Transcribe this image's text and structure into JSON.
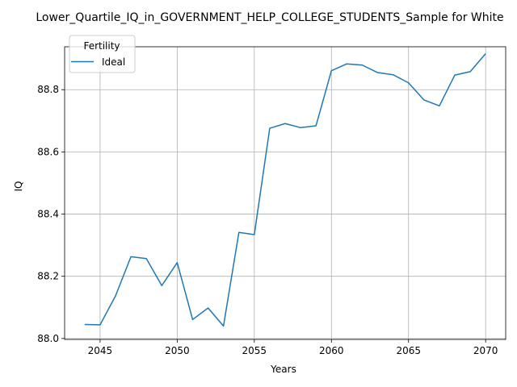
{
  "chart_data": {
    "type": "line",
    "title": "Lower_Quartile_IQ_in_GOVERNMENT_HELP_COLLEGE_STUDENTS_Sample for White",
    "xlabel": "Years",
    "ylabel": "IQ",
    "xlim": [
      2042.7,
      2071.3
    ],
    "ylim": [
      87.997,
      88.938
    ],
    "xticks": [
      2045,
      2050,
      2055,
      2060,
      2065,
      2070
    ],
    "yticks": [
      88.0,
      88.2,
      88.4,
      88.6,
      88.8
    ],
    "xtick_labels": [
      "2045",
      "2050",
      "2055",
      "2060",
      "2065",
      "2070"
    ],
    "ytick_labels": [
      "88.0",
      "88.2",
      "88.4",
      "88.6",
      "88.8"
    ],
    "grid": true,
    "legend": {
      "title": "Fertility",
      "position": "upper-left"
    },
    "series": [
      {
        "name": "Ideal",
        "color": "#1f77b4",
        "x": [
          2044,
          2045,
          2046,
          2047,
          2048,
          2049,
          2050,
          2051,
          2052,
          2053,
          2054,
          2055,
          2056,
          2057,
          2058,
          2059,
          2060,
          2061,
          2062,
          2063,
          2064,
          2065,
          2066,
          2067,
          2068,
          2069,
          2070
        ],
        "y": [
          88.045,
          88.044,
          88.137,
          88.263,
          88.257,
          88.17,
          88.244,
          88.061,
          88.098,
          88.04,
          88.341,
          88.334,
          88.676,
          88.691,
          88.678,
          88.684,
          88.861,
          88.883,
          88.879,
          88.855,
          88.848,
          88.822,
          88.767,
          88.748,
          88.847,
          88.858,
          88.916
        ]
      }
    ]
  }
}
